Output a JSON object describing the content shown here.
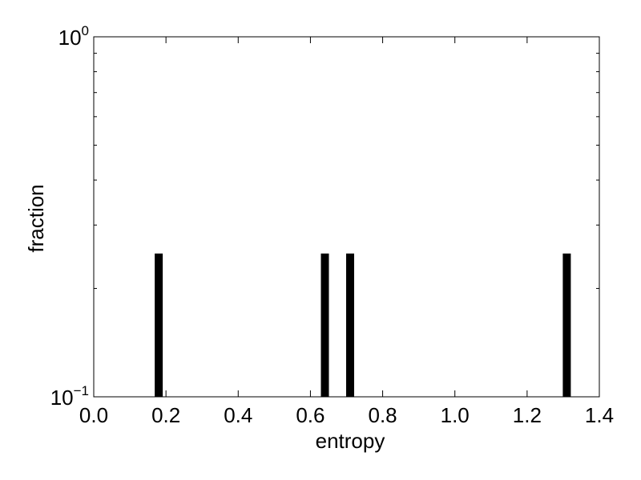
{
  "chart_data": {
    "type": "bar",
    "xlabel": "entropy",
    "ylabel": "fraction",
    "xlim": [
      0.0,
      1.4
    ],
    "ylim": [
      0.1,
      1.0
    ],
    "yscale": "log",
    "grid": false,
    "bar_color": "#000000",
    "bars": [
      {
        "x": 0.18,
        "value": 0.25
      },
      {
        "x": 0.64,
        "value": 0.25
      },
      {
        "x": 0.71,
        "value": 0.25
      },
      {
        "x": 1.31,
        "value": 0.25
      }
    ],
    "x_ticks": [
      {
        "value": 0.0,
        "label": "0.0"
      },
      {
        "value": 0.2,
        "label": "0.2"
      },
      {
        "value": 0.4,
        "label": "0.4"
      },
      {
        "value": 0.6,
        "label": "0.6"
      },
      {
        "value": 0.8,
        "label": "0.8"
      },
      {
        "value": 1.0,
        "label": "1.0"
      },
      {
        "value": 1.2,
        "label": "1.2"
      },
      {
        "value": 1.4,
        "label": "1.4"
      }
    ],
    "y_ticks": [
      {
        "value": 1.0,
        "base": "10",
        "exp": "0"
      },
      {
        "value": 0.1,
        "base": "10",
        "exp": "−1"
      }
    ]
  }
}
